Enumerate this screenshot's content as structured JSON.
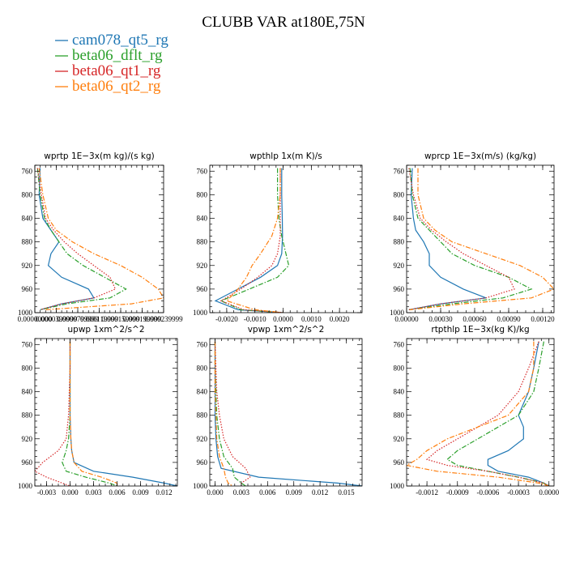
{
  "chart_data": {
    "type": "line",
    "title": "CLUBB VAR at180E,75N",
    "legend": {
      "position": "top-left",
      "entries": [
        {
          "name": "cam078_qt5_rg",
          "color": "#1f77b4",
          "dash": "solid"
        },
        {
          "name": "beta06_dflt_rg",
          "color": "#2ca02c",
          "dash": "dashdot"
        },
        {
          "name": "beta06_qt1_rg",
          "color": "#d62728",
          "dash": "dotted"
        },
        {
          "name": "beta06_qt2_rg",
          "color": "#ff7f0e",
          "dash": "dashdot"
        }
      ]
    },
    "panels": [
      {
        "title": "wprtp  1E−3x(m kg)/(s kg)",
        "xlim": [
          0,
          0.00024
        ],
        "xticks": [
          0,
          4e-05,
          8e-05,
          0.00012,
          0.00016,
          0.0002,
          0.00024
        ],
        "xtick_labels": [
          "0.00000000",
          "0.0000399999",
          "0.0000799999",
          "0.000119999",
          "0.000159999",
          "0.000199999",
          "0.000239999"
        ],
        "ylim": [
          1000,
          750
        ],
        "yticks": [
          760,
          800,
          840,
          880,
          920,
          960,
          1000
        ],
        "y": [
          755,
          800,
          840,
          860,
          880,
          900,
          920,
          940,
          960,
          975,
          985,
          995
        ],
        "series": [
          {
            "values": [
              1e-05,
              8e-06,
              1.5e-05,
              3e-05,
              4.5e-05,
              3e-05,
              2.5e-05,
              5e-05,
              0.0001,
              0.00011,
              5e-05,
              1e-05
            ]
          },
          {
            "values": [
              5e-06,
              1e-05,
              1.8e-05,
              3e-05,
              4.5e-05,
              6e-05,
              9e-05,
              0.00013,
              0.00017,
              0.00014,
              6e-05,
              1e-05
            ]
          },
          {
            "values": [
              5e-06,
              1.2e-05,
              2e-05,
              3.5e-05,
              5.5e-05,
              8e-05,
              0.00011,
              0.00014,
              0.00015,
              0.00011,
              5e-05,
              1e-05
            ]
          },
          {
            "values": [
              8e-06,
              1.5e-05,
              2.5e-05,
              4e-05,
              7e-05,
              0.00011,
              0.00016,
              0.0002,
              0.00023,
              0.00024,
              0.00018,
              2e-05
            ]
          }
        ]
      },
      {
        "title": "wpthlp  1x(m K)/s",
        "xlim": [
          -0.0026,
          0.0028
        ],
        "xticks": [
          -0.002,
          -0.001,
          0,
          0.001,
          0.002
        ],
        "xtick_labels": [
          "-0.0020",
          "-0.0010",
          "0.0000",
          "0.0010",
          "0.0020"
        ],
        "ylim": [
          1000,
          750
        ],
        "yticks": [
          760,
          800,
          840,
          880,
          920,
          960,
          1000
        ],
        "y": [
          755,
          800,
          840,
          870,
          900,
          920,
          940,
          960,
          980,
          995,
          1000
        ],
        "series": [
          {
            "values": [
              -5e-05,
              -5e-05,
              -3e-05,
              -2e-05,
              -5e-05,
              -0.0002,
              -0.0008,
              -0.0016,
              -0.0024,
              -0.0016,
              0.0
            ]
          },
          {
            "values": [
              -0.0002,
              -0.0002,
              -0.00015,
              -5e-05,
              0.0001,
              0.0002,
              -0.0002,
              -0.0012,
              -0.0022,
              -0.0015,
              0.0
            ]
          },
          {
            "values": [
              -0.0001,
              -0.0001,
              -0.0001,
              -0.0001,
              -0.0002,
              -0.0004,
              -0.0009,
              -0.0015,
              -0.0022,
              -0.0014,
              0.0
            ]
          },
          {
            "values": [
              -0.0001,
              -0.0001,
              -0.0002,
              -0.0004,
              -0.0008,
              -0.0011,
              -0.0013,
              -0.0016,
              -0.002,
              -0.001,
              0.0
            ]
          }
        ]
      },
      {
        "title": "wprcp  1E−3x(m/s) (kg/kg)",
        "xlim": [
          0,
          0.0013
        ],
        "xticks": [
          0,
          0.0003,
          0.0006,
          0.0009,
          0.0012
        ],
        "xtick_labels": [
          "0.00000",
          "0.00030",
          "0.00060",
          "0.00090",
          "0.00120"
        ],
        "ylim": [
          1000,
          750
        ],
        "yticks": [
          760,
          800,
          840,
          880,
          920,
          960,
          1000
        ],
        "y": [
          755,
          800,
          840,
          860,
          880,
          900,
          920,
          940,
          960,
          975,
          985,
          995
        ],
        "series": [
          {
            "values": [
              5e-05,
              4e-05,
              6e-05,
              8e-05,
              0.00015,
              0.0002,
              0.0002,
              0.0003,
              0.0005,
              0.0007,
              0.0003,
              2e-05
            ]
          },
          {
            "values": [
              3e-05,
              5e-05,
              0.0001,
              0.0002,
              0.0003,
              0.0004,
              0.0006,
              0.0009,
              0.0011,
              0.00085,
              0.0004,
              2e-05
            ]
          },
          {
            "values": [
              2e-05,
              6e-05,
              0.00012,
              0.00022,
              0.00035,
              0.0005,
              0.0007,
              0.0009,
              0.00095,
              0.0007,
              0.0003,
              2e-05
            ]
          },
          {
            "values": [
              0.0001,
              0.0001,
              0.00015,
              0.00025,
              0.0004,
              0.0007,
              0.001,
              0.0012,
              0.0013,
              0.0011,
              0.0005,
              3e-05
            ]
          }
        ]
      },
      {
        "title": "upwp   1xm^2/s^2",
        "xlim": [
          -0.0045,
          0.0137
        ],
        "xticks": [
          -0.003,
          0,
          0.003,
          0.006,
          0.009,
          0.012
        ],
        "xtick_labels": [
          "-0.003",
          "0.000",
          "0.003",
          "0.006",
          "0.009",
          "0.012"
        ],
        "ylim": [
          1000,
          750
        ],
        "yticks": [
          760,
          800,
          840,
          880,
          920,
          960,
          1000
        ],
        "y": [
          755,
          800,
          840,
          880,
          920,
          940,
          960,
          975,
          985,
          995,
          1000
        ],
        "series": [
          {
            "values": [
              0.0,
              0.0,
              0.0,
              0.0,
              0.0001,
              0.0002,
              0.0005,
              0.003,
              0.008,
              0.012,
              0.0137
            ]
          },
          {
            "values": [
              0.0,
              0.0,
              0.0,
              0.0,
              -0.0002,
              -0.0005,
              -0.001,
              -0.0005,
              0.002,
              0.005,
              0.006
            ]
          },
          {
            "values": [
              0.0,
              0.0,
              -0.0001,
              -0.0002,
              -0.0005,
              -0.0015,
              -0.0035,
              -0.0045,
              -0.003,
              -0.001,
              0.0
            ]
          },
          {
            "values": [
              0.0,
              0.0,
              0.0,
              0.0,
              0.0001,
              0.0002,
              0.0005,
              0.0015,
              0.004,
              0.006,
              0.006
            ]
          }
        ]
      },
      {
        "title": "vpwp   1xm^2/s^2",
        "xlim": [
          -0.0006,
          0.0168
        ],
        "xticks": [
          0,
          0.003,
          0.006,
          0.009,
          0.012,
          0.015
        ],
        "xtick_labels": [
          "0.000",
          "0.003",
          "0.006",
          "0.009",
          "0.012",
          "0.015"
        ],
        "ylim": [
          1000,
          750
        ],
        "yticks": [
          760,
          800,
          840,
          880,
          920,
          960,
          1000
        ],
        "y": [
          755,
          800,
          840,
          880,
          920,
          950,
          970,
          985,
          995,
          1000
        ],
        "series": [
          {
            "values": [
              0.0,
              0.0,
              0.0,
              0.0,
              0.0001,
              0.0003,
              0.0007,
              0.005,
              0.014,
              0.0168
            ]
          },
          {
            "values": [
              0.0,
              0.0,
              0.0001,
              0.0002,
              0.0005,
              0.001,
              0.002,
              0.0022,
              0.003,
              0.0035
            ]
          },
          {
            "values": [
              0.0,
              0.0001,
              0.0002,
              0.0005,
              0.001,
              0.002,
              0.0035,
              0.004,
              0.003,
              0.003
            ]
          },
          {
            "values": [
              0.0,
              0.0,
              0.0,
              0.0001,
              0.0002,
              0.0005,
              0.001,
              0.0012,
              0.0015,
              0.002
            ]
          }
        ]
      },
      {
        "title": "rtpthlp  1E−3x(kg K)/kg",
        "xlim": [
          -0.0014,
          5e-05
        ],
        "xticks": [
          -0.0012,
          -0.0009,
          -0.0006,
          -0.0003,
          0
        ],
        "xtick_labels": [
          "-0.0012",
          "-0.0009",
          "-0.0006",
          "-0.0003",
          "0.0000"
        ],
        "ylim": [
          1000,
          750
        ],
        "yticks": [
          760,
          800,
          840,
          880,
          920,
          960,
          1000
        ],
        "y": [
          755,
          800,
          840,
          880,
          900,
          920,
          940,
          955,
          965,
          975,
          985,
          995,
          1000
        ],
        "series": [
          {
            "values": [
              -0.0001,
              -0.00015,
              -0.0002,
              -0.0003,
              -0.00025,
              -0.00025,
              -0.0004,
              -0.0006,
              -0.0006,
              -0.0005,
              -0.0002,
              -5e-05,
              0.0
            ]
          },
          {
            "values": [
              -5e-05,
              -0.0001,
              -0.00015,
              -0.0003,
              -0.0005,
              -0.0007,
              -0.0009,
              -0.001,
              -0.0009,
              -0.0006,
              -0.0003,
              -5e-05,
              0.0
            ]
          },
          {
            "values": [
              -0.0001,
              -0.0002,
              -0.0003,
              -0.0005,
              -0.0007,
              -0.0009,
              -0.0011,
              -0.0012,
              -0.001,
              -0.0006,
              -0.0003,
              -5e-05,
              0.0
            ]
          },
          {
            "values": [
              -0.00015,
              -0.00015,
              -0.0002,
              -0.0004,
              -0.0007,
              -0.001,
              -0.0012,
              -0.0013,
              -0.0014,
              -0.0011,
              -0.0005,
              -0.0001,
              0.0
            ]
          }
        ]
      }
    ]
  }
}
